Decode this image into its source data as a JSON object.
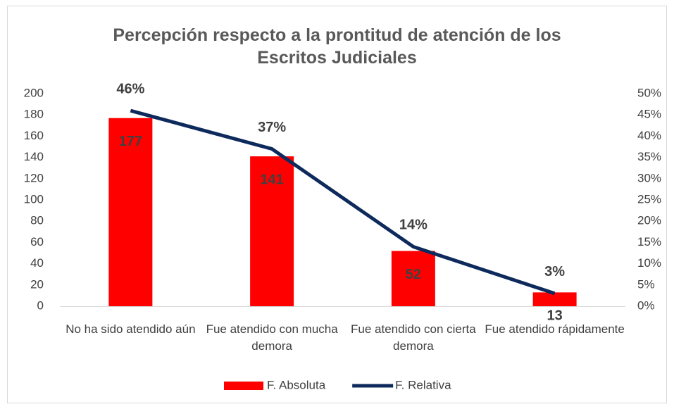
{
  "chart_data": {
    "type": "bar",
    "title": "Percepción respecto a la prontitud de atención de los\nEscritos Judiciales",
    "categories": [
      "No ha sido atendido aún",
      "Fue atendido con mucha demora",
      "Fue atendido con cierta demora",
      "Fue atendido rápidamente"
    ],
    "series": [
      {
        "name": "F. Absoluta",
        "type": "bar",
        "color": "#ff0000",
        "values": [
          177,
          141,
          52,
          13
        ]
      },
      {
        "name": "F. Relativa",
        "type": "line",
        "axis": "y2",
        "color": "#0e2a5c",
        "values": [
          46,
          37,
          14,
          3
        ],
        "value_labels": [
          "46%",
          "37%",
          "14%",
          "3%"
        ]
      }
    ],
    "ylim": [
      0,
      200
    ],
    "yticks": [
      0,
      20,
      40,
      60,
      80,
      100,
      120,
      140,
      160,
      180,
      200
    ],
    "y2lim": [
      0,
      50
    ],
    "y2ticks": [
      {
        "value": 0,
        "label": "0%"
      },
      {
        "value": 5,
        "label": "5%"
      },
      {
        "value": 10,
        "label": "10%"
      },
      {
        "value": 15,
        "label": "15%"
      },
      {
        "value": 20,
        "label": "20%"
      },
      {
        "value": 25,
        "label": "25%"
      },
      {
        "value": 30,
        "label": "30%"
      },
      {
        "value": 35,
        "label": "35%"
      },
      {
        "value": 40,
        "label": "40%"
      },
      {
        "value": 45,
        "label": "45%"
      },
      {
        "value": 50,
        "label": "50%"
      }
    ],
    "grid": false,
    "legend": "bottom"
  }
}
